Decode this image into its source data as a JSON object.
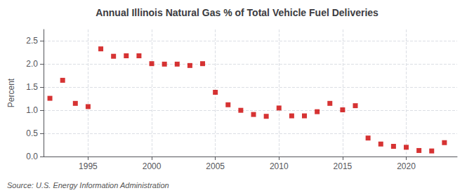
{
  "chart_data": {
    "type": "scatter",
    "title": "Annual Illinois Natural Gas % of Total Vehicle Fuel Deliveries",
    "ylabel": "Percent",
    "annotation": "Source: U.S. Energy Information Administration",
    "x": [
      1992,
      1993,
      1994,
      1995,
      1996,
      1997,
      1998,
      1999,
      2000,
      2001,
      2002,
      2003,
      2004,
      2005,
      2006,
      2007,
      2008,
      2009,
      2010,
      2011,
      2012,
      2013,
      2014,
      2015,
      2016,
      2017,
      2018,
      2019,
      2020,
      2021,
      2022,
      2023
    ],
    "values": [
      1.26,
      1.65,
      1.15,
      1.08,
      2.33,
      2.17,
      2.18,
      2.18,
      2.01,
      2.0,
      2.0,
      1.97,
      2.01,
      1.39,
      1.12,
      1.0,
      0.91,
      0.87,
      1.05,
      0.88,
      0.88,
      0.97,
      1.15,
      1.01,
      1.1,
      0.4,
      0.27,
      0.22,
      0.2,
      0.13,
      0.12,
      0.3
    ],
    "color": "#cc0000",
    "marker": "square",
    "xlim": [
      1991.5,
      2024
    ],
    "ylim": [
      0.0,
      2.75
    ],
    "xticks": [
      1995,
      2000,
      2005,
      2010,
      2015,
      2020
    ],
    "yticks": [
      {
        "value": 0.0,
        "label": "0.0"
      },
      0.5,
      {
        "value": 1.0,
        "label": "1.0"
      },
      1.5,
      {
        "value": 2.0,
        "label": "2.0"
      },
      2.5
    ],
    "grid": true
  }
}
